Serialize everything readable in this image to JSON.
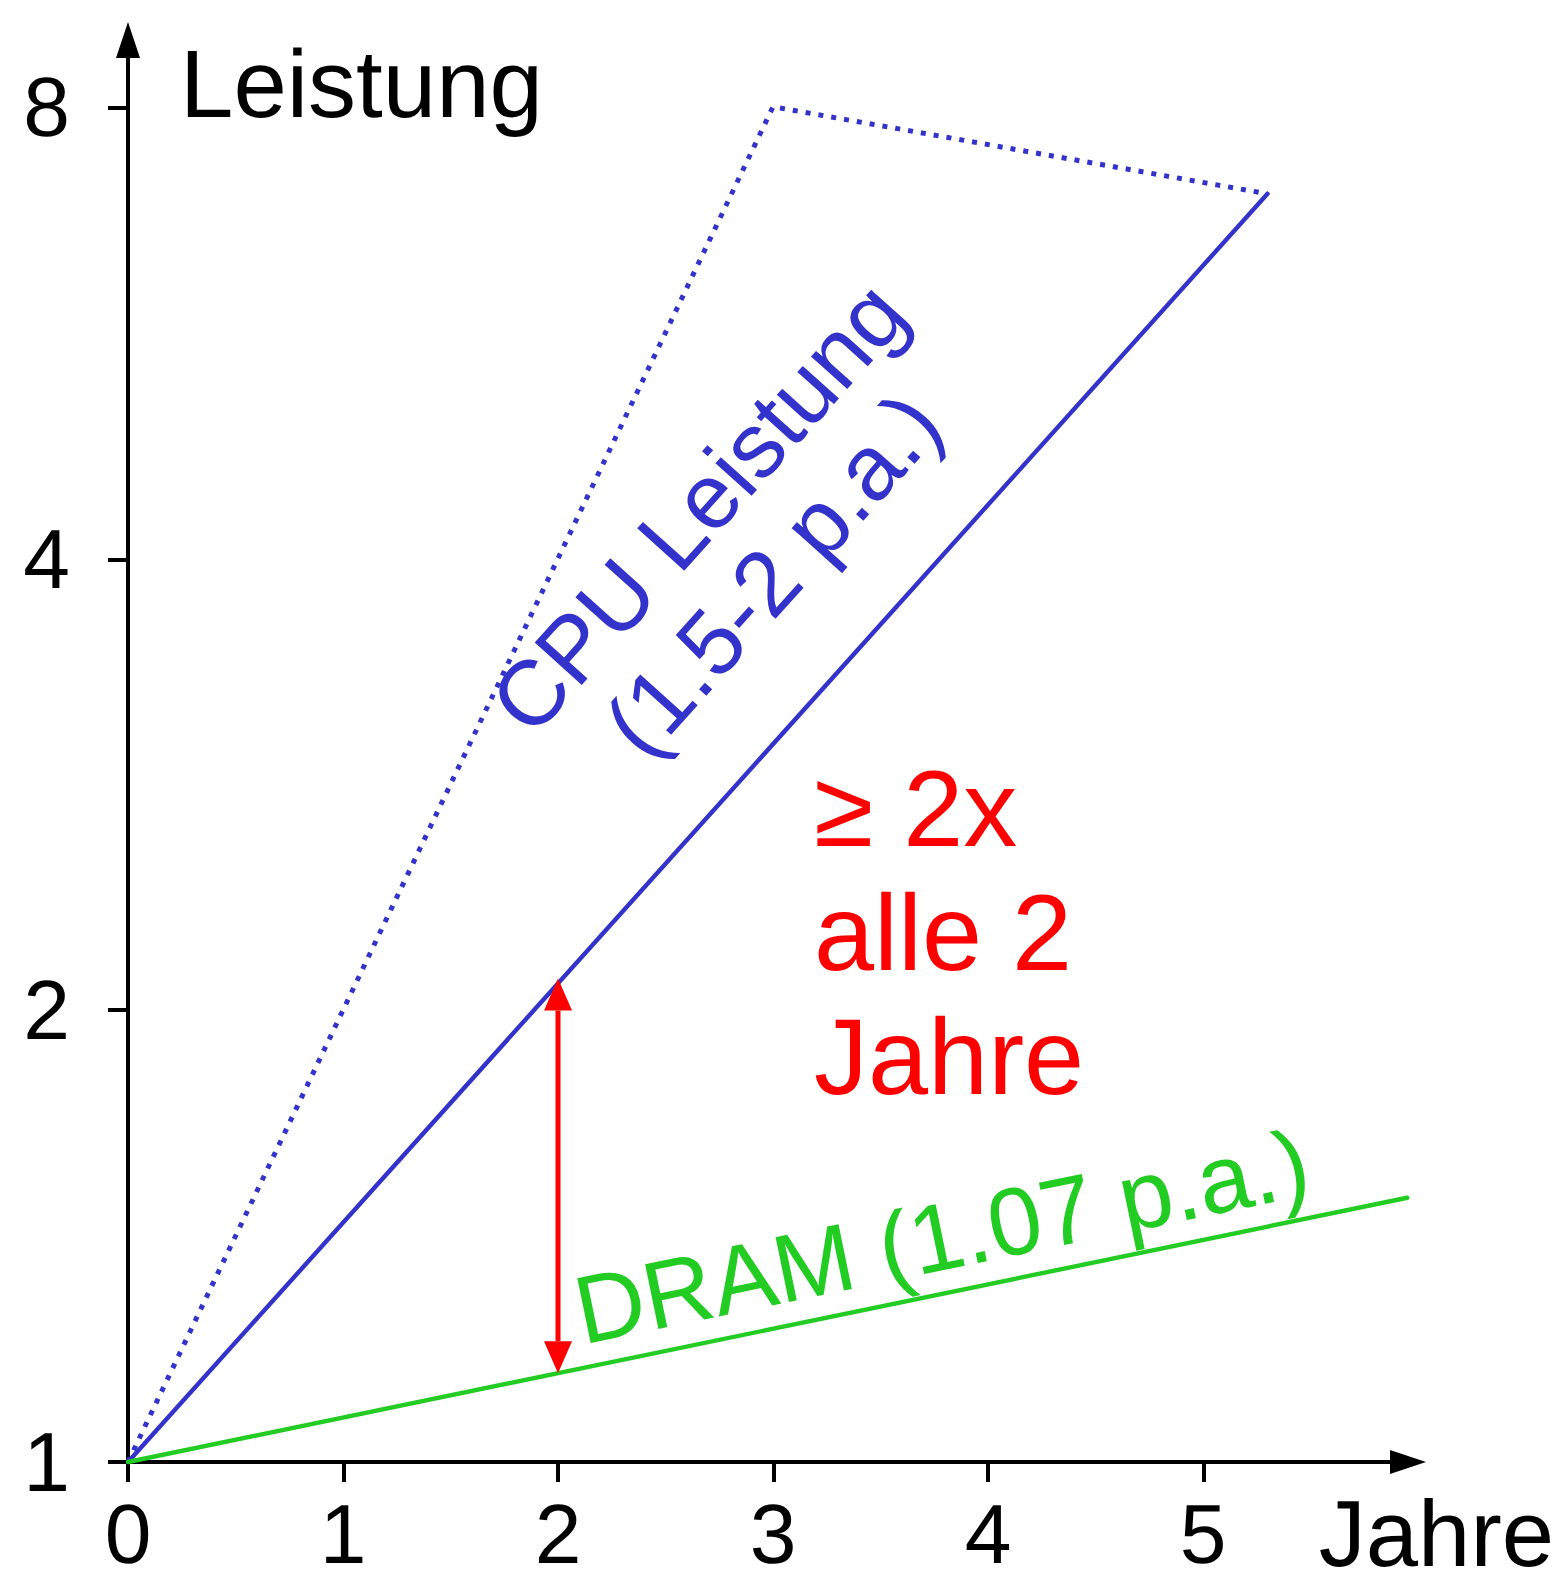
{
  "chart_data": {
    "type": "line",
    "xlabel": "Jahre",
    "ylabel": "Leistung",
    "series": [
      {
        "name": "CPU Leistung\n(1.5-2 p.a.)",
        "color": "#3333cc",
        "x": [
          0,
          5.3
        ],
        "values": [
          1,
          7
        ]
      },
      {
        "color": "#3333cc",
        "line_style": "dotted",
        "x": [
          0,
          3,
          5.3
        ],
        "values": [
          1,
          8,
          7
        ]
      },
      {
        "name": "DRAM (1.07 p.a.)",
        "color": "#22cc22",
        "x": [
          0,
          5.95
        ],
        "values": [
          1,
          1.5
        ]
      }
    ],
    "xlim": [
      0,
      6
    ],
    "ylim": [
      1,
      9
    ],
    "xticks": [
      0,
      1,
      2,
      3,
      4,
      5
    ],
    "yticks": [
      1,
      2,
      4,
      8
    ],
    "log": "y",
    "marker": "none",
    "line_style": "solid",
    "grid": false,
    "annotations": [
      {
        "text": "≥ 2x\nalle 2\nJahre",
        "x": 2,
        "y": 2.1
      }
    ]
  }
}
